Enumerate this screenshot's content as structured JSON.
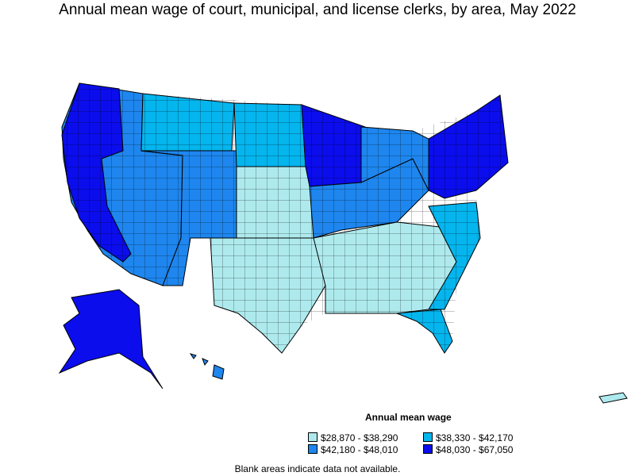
{
  "title": "Annual mean wage of court, municipal, and license clerks, by area, May 2022",
  "legend": {
    "title": "Annual mean wage",
    "items": [
      {
        "label": "$28,870 - $38,290",
        "color": "#aeeaed"
      },
      {
        "label": "$38,330 - $42,170",
        "color": "#05b5ee"
      },
      {
        "label": "$42,180 - $48,010",
        "color": "#1e86ee"
      },
      {
        "label": "$48,030 - $67,050",
        "color": "#0b0ded"
      }
    ]
  },
  "note": "Blank areas indicate data not available."
}
